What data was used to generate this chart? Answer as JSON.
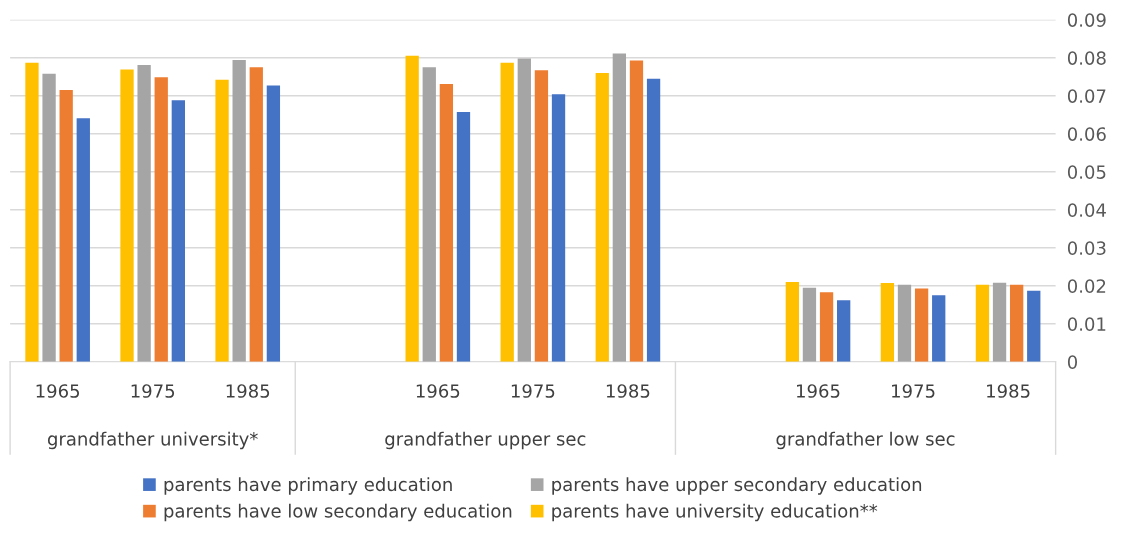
{
  "chart_data": {
    "type": "bar",
    "categories": [
      "1965",
      "1975",
      "1985",
      null,
      "1965",
      "1975",
      "1985",
      null,
      "1965",
      "1975",
      "1985"
    ],
    "series": [
      {
        "name": "parents have primary education",
        "color": "#4472c4",
        "values": [
          0.0641,
          0.0688,
          0.0727,
          null,
          0.0657,
          0.0704,
          0.0745,
          null,
          0.0162,
          0.0175,
          0.0187
        ]
      },
      {
        "name": "parents have low secondary education",
        "color": "#ed7d31",
        "values": [
          0.0715,
          0.0749,
          0.0775,
          null,
          0.0731,
          0.0767,
          0.0793,
          null,
          0.0183,
          0.0193,
          0.0203
        ]
      },
      {
        "name": "parents have upper secondary education",
        "color": "#a5a5a5",
        "values": [
          0.0758,
          0.0781,
          0.0794,
          null,
          0.0775,
          0.0798,
          0.0811,
          null,
          0.0195,
          0.0203,
          0.0208
        ]
      },
      {
        "name": "parents have university education**",
        "color": "#ffc000",
        "values": [
          0.0787,
          0.0769,
          0.0742,
          null,
          0.0805,
          0.0787,
          0.076,
          null,
          0.021,
          0.0207,
          0.0203
        ]
      }
    ],
    "annotations": [
      "grandfather university*",
      "grandfather upper sec",
      "grandfather low sec"
    ],
    "ylim": [
      0,
      0.09
    ],
    "yticks": [
      0,
      0.01,
      0.02,
      0.03,
      0.04,
      0.05,
      0.06,
      0.07,
      0.08,
      0.09
    ],
    "grid": "y",
    "legend": "bottom"
  }
}
